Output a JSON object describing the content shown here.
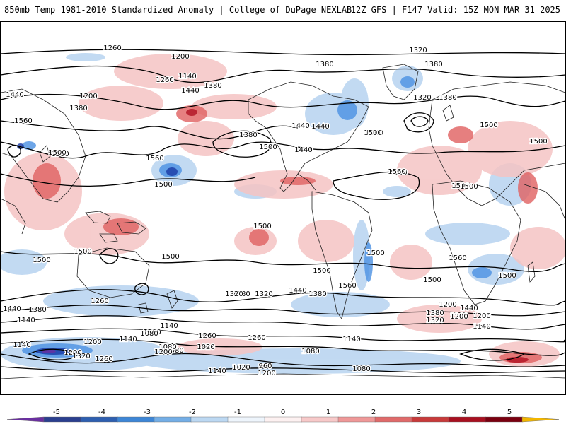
{
  "header": {
    "left": "850mb Temp 1981-2010 Standardized Anomaly | College of DuPage NEXLAB",
    "right": "12Z GFS | F147 Valid: 15Z MON MAR 31 2025"
  },
  "colors": {
    "land_outline": "#222222",
    "contour": "#000000",
    "anom_neg_strong": "#1e3fa8",
    "anom_neg": "#4a90e2",
    "anom_neg_light": "#b7d3f0",
    "anom_pos_light": "#f5c4c4",
    "anom_pos": "#e06060",
    "anom_pos_strong": "#b01020"
  },
  "contour_labels": [
    "1260",
    "1200",
    "1320",
    "1380",
    "1140",
    "1260",
    "1380",
    "1440",
    "1380",
    "1440",
    "1200",
    "1380",
    "1320",
    "1380",
    "1560",
    "1500",
    "1380",
    "1500",
    "1440",
    "1440",
    "1500",
    "1500",
    "1440",
    "1560",
    "1500",
    "1500",
    "1560",
    "1500",
    "1440",
    "1500",
    "1500",
    "1500",
    "1500",
    "1500",
    "1500",
    "1500",
    "1500",
    "1560",
    "1500",
    "1560",
    "1500",
    "1500",
    "1560",
    "1380",
    "1320",
    "1440",
    "1380",
    "1320",
    "1260",
    "1440",
    "1380",
    "1140",
    "1200",
    "1080",
    "1140",
    "1200",
    "1080",
    "1020",
    "1260",
    "1080",
    "1140",
    "1260",
    "1140",
    "1320",
    "1200",
    "1080",
    "1200",
    "1260",
    "1020",
    "960",
    "1140",
    "1200",
    "1080",
    "1140",
    "1200",
    "1200",
    "1440",
    "1380",
    "1320",
    "1260",
    "1200",
    "1140"
  ],
  "colorbar": {
    "ticks": [
      "-5",
      "-4",
      "-3",
      "-2",
      "-1",
      "0",
      "1",
      "2",
      "3",
      "4",
      "5"
    ],
    "colors": [
      "#6a2fa0",
      "#2a3f8f",
      "#2e5fb0",
      "#3d86d6",
      "#74aee6",
      "#bcd8f2",
      "#eef5fc",
      "#fdf1f1",
      "#f7c9c9",
      "#ef9898",
      "#e06a6a",
      "#c83a3a",
      "#a81020",
      "#7a0010",
      "#f2b600"
    ]
  }
}
